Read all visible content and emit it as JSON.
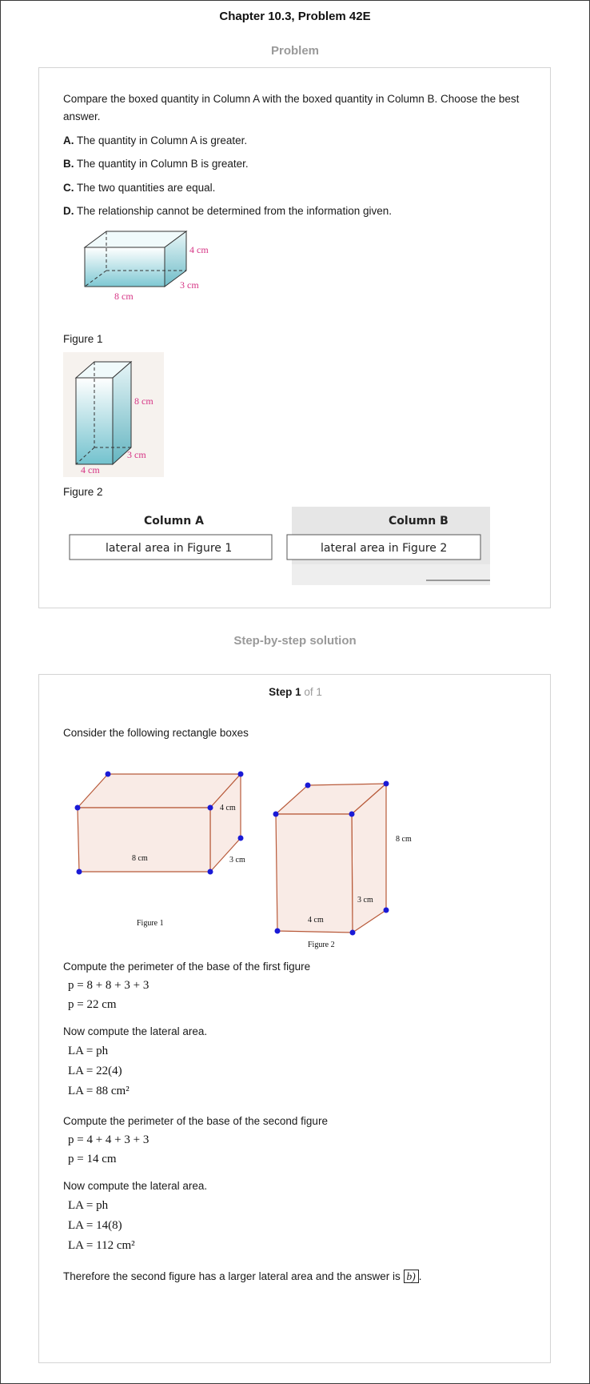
{
  "header": {
    "title": "Chapter 10.3, Problem 42E"
  },
  "problem": {
    "heading": "Problem",
    "intro": "Compare the boxed quantity in Column A with the boxed quantity in Column B. Choose the best answer.",
    "choices": [
      {
        "letter": "A.",
        "text": " The quantity in Column A is greater."
      },
      {
        "letter": "B.",
        "text": " The quantity in Column B is greater."
      },
      {
        "letter": "C.",
        "text": " The two quantities are equal."
      },
      {
        "letter": "D.",
        "text": " The relationship cannot be determined from the information given."
      }
    ],
    "figure1": {
      "caption": "Figure 1",
      "dims": [
        "4 cm",
        "3 cm",
        "8 cm"
      ]
    },
    "figure2": {
      "caption": "Figure 2",
      "dims": [
        "8 cm",
        "3 cm",
        "4 cm"
      ]
    },
    "columns": {
      "a_head": "Column A",
      "a_text": "lateral area in Figure 1",
      "b_head": "Column B",
      "b_text": "lateral area in Figure 2"
    }
  },
  "solution": {
    "heading": "Step-by-step solution",
    "step_label": "Step 1",
    "step_of": " of 1",
    "intro": "Consider the following rectangle boxes",
    "fig1": {
      "caption": "Figure 1",
      "dims": [
        "4 cm",
        "3 cm",
        "8 cm"
      ]
    },
    "fig2": {
      "caption": "Figure 2",
      "dims": [
        "8 cm",
        "3 cm",
        "4 cm"
      ]
    },
    "lines": {
      "l1": "Compute the perimeter of the base of the first figure",
      "m1a": "p = 8 + 8 + 3 + 3",
      "m1b": "p = 22 cm",
      "l2": "Now compute the lateral area.",
      "m2a": "LA = ph",
      "m2b": "LA = 22(4)",
      "m2c": "LA = 88 cm²",
      "l3": "Compute the perimeter of the base of the second figure",
      "m3a": "p = 4 + 4 + 3 + 3",
      "m3b": "p = 14 cm",
      "l4": "Now compute the lateral area.",
      "m4a": "LA = ph",
      "m4b": "LA = 14(8)",
      "m4c": "LA = 112 cm²",
      "conclusion": "Therefore the second figure has a larger lateral area and the answer is ",
      "answer": "b)",
      "period": "."
    }
  }
}
